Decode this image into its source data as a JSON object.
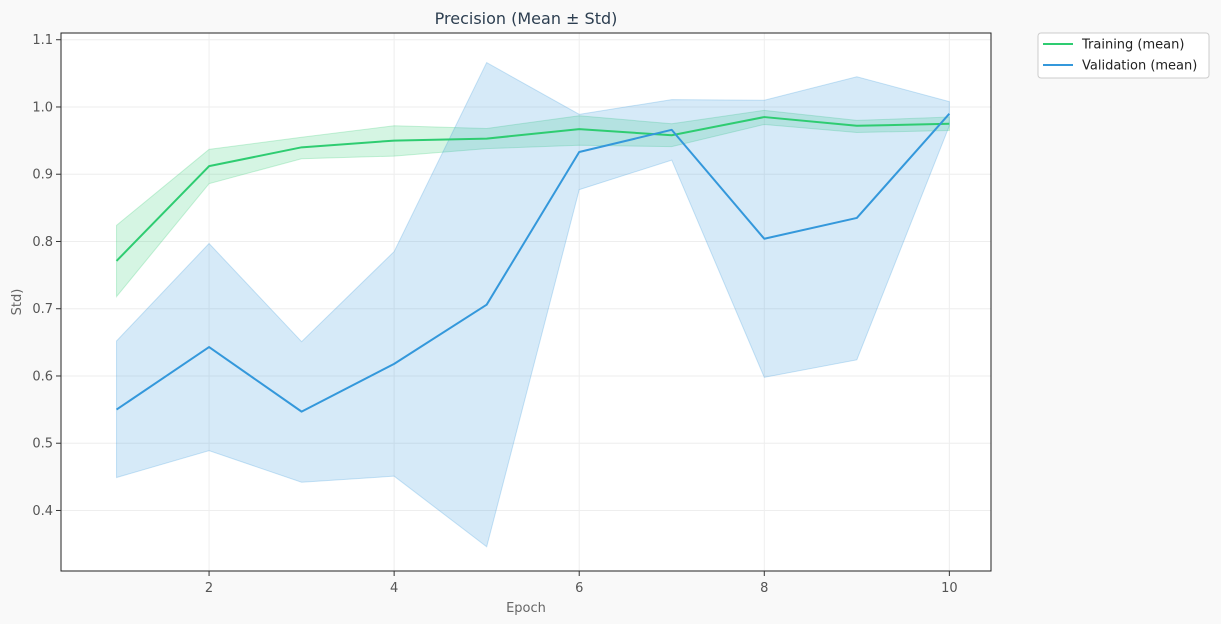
{
  "chart_data": {
    "type": "line",
    "title": "Precision (Mean ± Std)",
    "xlabel": "Epoch",
    "ylabel": "Std)",
    "x": [
      1,
      2,
      3,
      4,
      5,
      6,
      7,
      8,
      9,
      10
    ],
    "xlim": [
      0.4,
      10.45
    ],
    "ylim": [
      0.31,
      1.11
    ],
    "xticks": [
      2,
      4,
      6,
      8,
      10
    ],
    "yticks": [
      0.4,
      0.5,
      0.6,
      0.7,
      0.8,
      0.9,
      1.0,
      1.1
    ],
    "ytick_labels": [
      "0.4",
      "0.5",
      "0.6",
      "0.7",
      "0.8",
      "0.9",
      "1.0",
      "1.1"
    ],
    "grid": true,
    "legend_position": "outside-top-right",
    "series": [
      {
        "name": "Training (mean)",
        "color": "#2ecc71",
        "mean": [
          0.771,
          0.912,
          0.94,
          0.95,
          0.953,
          0.967,
          0.958,
          0.985,
          0.972,
          0.975
        ],
        "upper": [
          0.824,
          0.937,
          0.955,
          0.972,
          0.968,
          0.987,
          0.975,
          0.995,
          0.98,
          0.985
        ],
        "lower": [
          0.718,
          0.886,
          0.923,
          0.927,
          0.938,
          0.943,
          0.941,
          0.974,
          0.962,
          0.965
        ]
      },
      {
        "name": "Validation (mean)",
        "color": "#3498db",
        "mean": [
          0.55,
          0.643,
          0.547,
          0.618,
          0.706,
          0.933,
          0.966,
          0.804,
          0.835,
          0.99
        ],
        "upper": [
          0.652,
          0.797,
          0.651,
          0.785,
          1.066,
          0.989,
          1.011,
          1.01,
          1.045,
          1.008
        ],
        "lower": [
          0.449,
          0.489,
          0.442,
          0.451,
          0.346,
          0.877,
          0.921,
          0.598,
          0.624,
          0.972
        ]
      }
    ]
  }
}
